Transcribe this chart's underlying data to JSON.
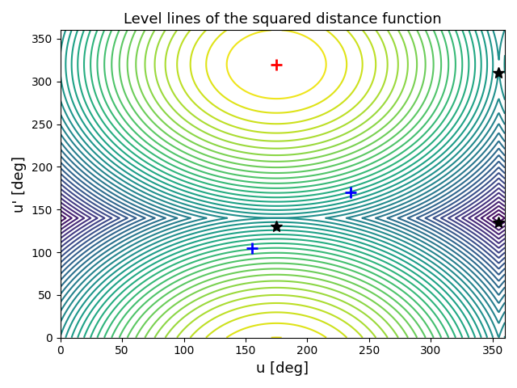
{
  "title": "Level lines of the squared distance function",
  "xlabel": "u [deg]",
  "ylabel": "u' [deg]",
  "xlim": [
    0,
    360
  ],
  "ylim": [
    0,
    360
  ],
  "xticks": [
    0,
    50,
    100,
    150,
    200,
    250,
    300,
    350
  ],
  "yticks": [
    0,
    50,
    100,
    150,
    200,
    250,
    300,
    350
  ],
  "red_plus": [
    175,
    320
  ],
  "blue_plus_1": [
    155,
    105
  ],
  "blue_plus_2": [
    235,
    170
  ],
  "black_star_1": [
    175,
    130
  ],
  "black_star_2": [
    355,
    310
  ],
  "black_star_3": [
    355,
    135
  ],
  "n_levels": 40,
  "cmap": "viridis",
  "figsize": [
    6.4,
    4.8
  ],
  "dpi": 100,
  "target_u": 175,
  "target_v": 320
}
